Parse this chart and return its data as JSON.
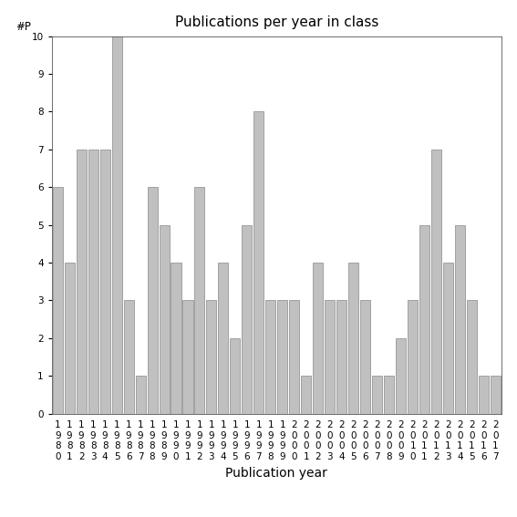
{
  "title": "Publications per year in class",
  "xlabel": "Publication year",
  "ylabel": "#P",
  "years": [
    "1980",
    "1981",
    "1982",
    "1983",
    "1984",
    "1985",
    "1986",
    "1987",
    "1988",
    "1989",
    "1990",
    "1991",
    "1992",
    "1993",
    "1994",
    "1995",
    "1996",
    "1997",
    "1998",
    "1999",
    "2000",
    "2001",
    "2002",
    "2003",
    "2004",
    "2005",
    "2006",
    "2007",
    "2008",
    "2009",
    "2010",
    "2011",
    "2012",
    "2013",
    "2014",
    "2015",
    "2016",
    "2017"
  ],
  "values": [
    6,
    4,
    7,
    7,
    7,
    10,
    3,
    1,
    6,
    5,
    4,
    3,
    6,
    3,
    4,
    2,
    5,
    8,
    3,
    3,
    3,
    1,
    4,
    3,
    3,
    4,
    3,
    1,
    1,
    2,
    3,
    5,
    7,
    4,
    5,
    3,
    1,
    1
  ],
  "bar_color": "#c0c0c0",
  "bar_edge_color": "#888888",
  "ylim": [
    0,
    10
  ],
  "yticks": [
    0,
    1,
    2,
    3,
    4,
    5,
    6,
    7,
    8,
    9,
    10
  ],
  "background_color": "#ffffff",
  "title_fontsize": 11,
  "xlabel_fontsize": 10,
  "tick_fontsize": 7.5
}
